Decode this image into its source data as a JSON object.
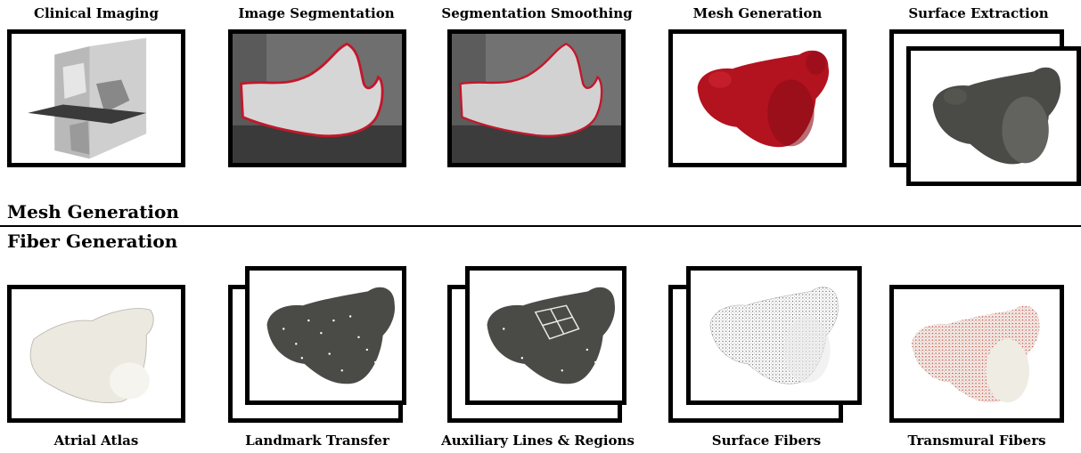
{
  "mesh_section": {
    "title": "Mesh Generation",
    "steps": [
      "Clinical Imaging",
      "Image Segmentation",
      "Segmentation Smoothing",
      "Mesh Generation",
      "Surface Extraction"
    ]
  },
  "fiber_section": {
    "title": "Fiber Generation",
    "steps": [
      "Atrial Atlas",
      "Landmark Transfer",
      "Auxiliary Lines & Regions",
      "Surface Fibers",
      "Transmural Fibers"
    ]
  },
  "colors": {
    "segmentation_contour": "#c2182b",
    "mesh_red": "#b3121f",
    "surface_dark": "#4a4a47",
    "atlas_white": "#ece9e0",
    "fiber_red": "#c0392b"
  }
}
